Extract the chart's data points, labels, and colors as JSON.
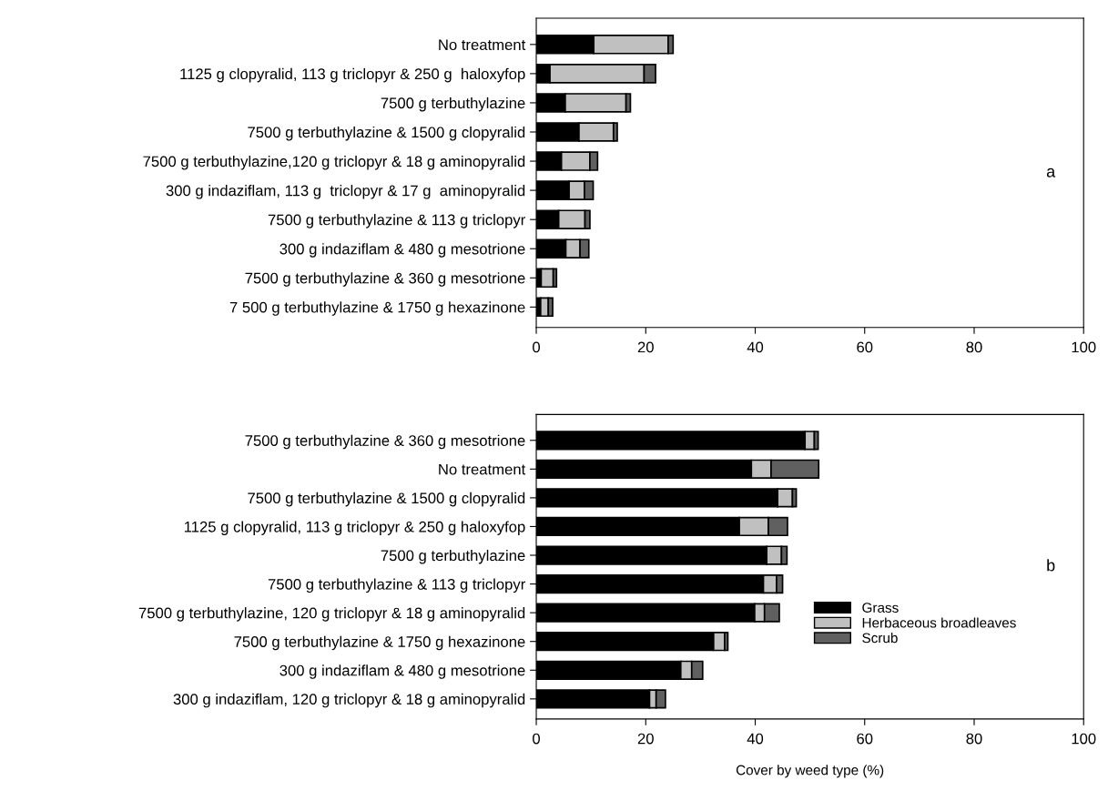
{
  "chart_data": [
    {
      "type": "bar",
      "orientation": "horizontal",
      "stacked": true,
      "annotations": [
        "a"
      ],
      "categories": [
        "No treatment",
        "1125 g clopyralid, 113 g triclopyr & 250 g  haloxyfop",
        "7500 g terbuthylazine",
        "7500 g terbuthylazine & 1500 g clopyralid",
        "7500 g terbuthylazine,120 g triclopyr & 18 g aminopyralid",
        "300 g indaziflam, 113 g  triclopyr & 17 g  aminopyralid",
        "7500 g terbuthylazine & 113 g triclopyr",
        "300 g indaziflam & 480 g mesotrione",
        "7500 g terbuthylazine & 360 g mesotrione",
        "7 500 g terbuthylazine & 1750 g hexazinone"
      ],
      "series": [
        {
          "color": "#000000",
          "values": [
            10.5,
            2.5,
            5.3,
            7.8,
            4.6,
            6.0,
            4.1,
            5.4,
            0.9,
            0.8
          ]
        },
        {
          "color": "#c0c0c0",
          "values": [
            13.6,
            17.2,
            11.1,
            6.3,
            5.2,
            2.8,
            4.8,
            2.6,
            2.2,
            1.4
          ]
        },
        {
          "color": "#606060",
          "values": [
            0.9,
            2.1,
            0.8,
            0.7,
            1.4,
            1.6,
            0.9,
            1.6,
            0.6,
            0.8
          ]
        }
      ],
      "xlim": [
        0,
        100
      ],
      "xticks": [
        0,
        20,
        40,
        60,
        80,
        100
      ],
      "grid": false,
      "legend": false
    },
    {
      "type": "bar",
      "orientation": "horizontal",
      "stacked": true,
      "annotations": [
        "b"
      ],
      "xlabel": "Cover by weed type (%)",
      "categories": [
        "7500 g terbuthylazine & 360 g mesotrione",
        "No treatment",
        "7500 g terbuthylazine & 1500 g clopyralid",
        "1125 g clopyralid, 113 g triclopyr & 250 g haloxyfop",
        "7500 g terbuthylazine",
        "7500 g terbuthylazine & 113 g triclopyr",
        "7500 g terbuthylazine, 120 g triclopyr & 18 g aminopyralid",
        "7500 g terbuthylazine & 1750 g hexazinone",
        "300 g indaziflam & 480 g mesotrione",
        "300 g indaziflam, 120 g triclopyr & 18 g aminopyralid"
      ],
      "series": [
        {
          "name": "Grass",
          "color": "#000000",
          "values": [
            49.1,
            39.3,
            44.1,
            37.1,
            42.1,
            41.5,
            39.9,
            32.4,
            26.4,
            20.7
          ]
        },
        {
          "name": "Herbaceous broadleaves",
          "color": "#c0c0c0",
          "values": [
            1.7,
            3.6,
            2.7,
            5.3,
            2.7,
            2.4,
            1.8,
            2.0,
            2.0,
            1.2
          ]
        },
        {
          "name": "Scrub",
          "color": "#606060",
          "values": [
            0.7,
            8.7,
            0.7,
            3.5,
            1.0,
            1.1,
            2.7,
            0.6,
            2.0,
            1.7
          ]
        }
      ],
      "xlim": [
        0,
        100
      ],
      "xticks": [
        0,
        20,
        40,
        60,
        80,
        100
      ],
      "grid": false,
      "legend": "bottom right"
    }
  ]
}
